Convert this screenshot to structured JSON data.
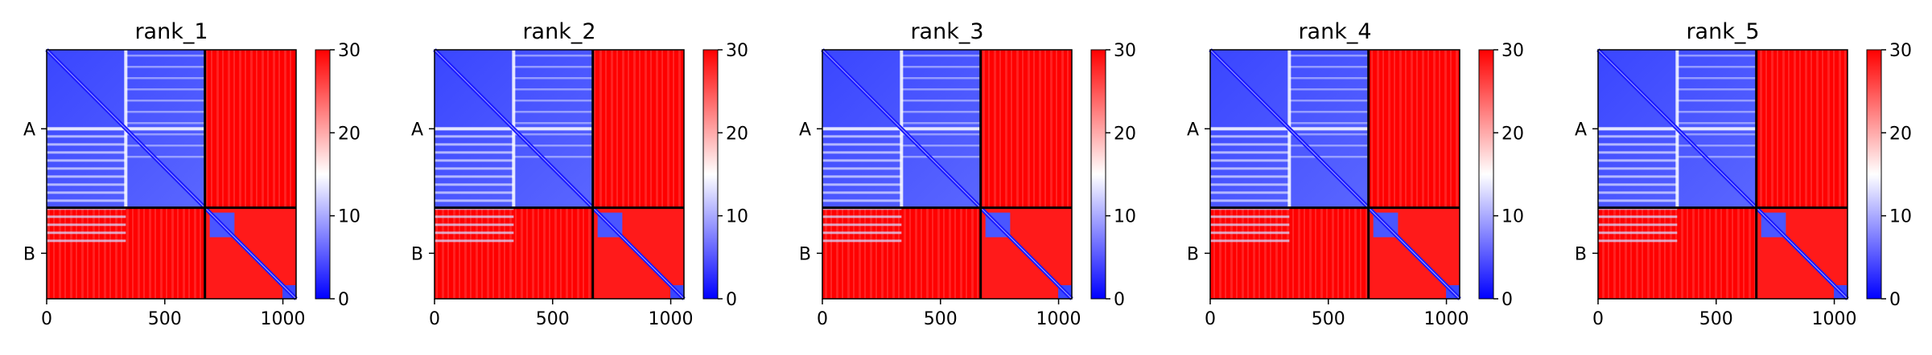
{
  "chart_data": {
    "type": "heatmap",
    "colormap": {
      "low": "#0000ff",
      "mid": "#ffffff",
      "high": "#ff0000",
      "range": [
        0,
        30
      ],
      "ticks": [
        0,
        10,
        20,
        30
      ]
    },
    "axis": {
      "xlim": [
        0,
        1056
      ],
      "xticks": [
        0,
        500,
        1000
      ],
      "grid": false
    },
    "chains": [
      {
        "label": "A",
        "start": 0,
        "end": 670
      },
      {
        "label": "B",
        "start": 670,
        "end": 1056
      }
    ],
    "domain_boundaries": [
      335
    ],
    "panels": [
      {
        "title": "rank_1"
      },
      {
        "title": "rank_2"
      },
      {
        "title": "rank_3"
      },
      {
        "title": "rank_4"
      },
      {
        "title": "rank_5"
      }
    ]
  }
}
